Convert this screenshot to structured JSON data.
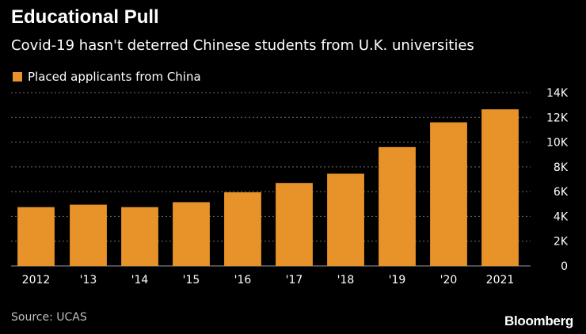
{
  "chart_data": {
    "type": "bar",
    "title": "Educational Pull",
    "subtitle": "Covid-19 hasn't deterred Chinese students from U.K. universities",
    "categories": [
      "2012",
      "'13",
      "'14",
      "'15",
      "'16",
      "'17",
      "'18",
      "'19",
      "'20",
      "2021"
    ],
    "series": [
      {
        "name": "Placed applicants from China",
        "values": [
          4750,
          4950,
          4750,
          5150,
          5950,
          6700,
          7450,
          9600,
          11600,
          12650
        ],
        "color": "#e8922a"
      }
    ],
    "yticks": [
      {
        "value": 0,
        "label": "0"
      },
      {
        "value": 2000,
        "label": "2K"
      },
      {
        "value": 4000,
        "label": "4K"
      },
      {
        "value": 6000,
        "label": "6K"
      },
      {
        "value": 8000,
        "label": "8K"
      },
      {
        "value": 10000,
        "label": "10K"
      },
      {
        "value": 12000,
        "label": "12K"
      },
      {
        "value": 14000,
        "label": "14K"
      }
    ],
    "ylim": [
      0,
      14000
    ],
    "y_axis_side": "right",
    "grid": true,
    "legend_position": "top-left",
    "xlabel": "",
    "ylabel": ""
  },
  "footer": {
    "source": "Source: UCAS",
    "brand": "Bloomberg"
  },
  "colors": {
    "background": "#000000",
    "bar": "#e8922a",
    "text": "#ffffff",
    "grid": "#6e6e6e",
    "muted_text": "#bfbfbf"
  }
}
